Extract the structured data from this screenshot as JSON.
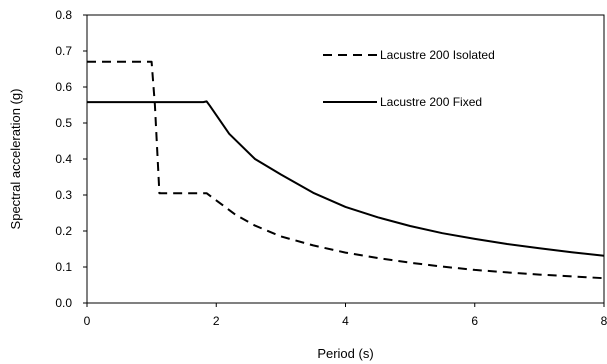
{
  "chart_data": {
    "type": "line",
    "title": "",
    "xlabel": "Period (s)",
    "ylabel": "Spectral acceleration (g)",
    "xlim": [
      0,
      8
    ],
    "ylim": [
      0,
      0.8
    ],
    "x_ticks": [
      0,
      2,
      4,
      6,
      8
    ],
    "y_ticks": [
      0.0,
      0.1,
      0.2,
      0.3,
      0.4,
      0.5,
      0.6,
      0.7,
      0.8
    ],
    "x_tick_labels": [
      "0",
      "2",
      "4",
      "6",
      "8"
    ],
    "y_tick_labels": [
      "0.0",
      "0.1",
      "0.2",
      "0.3",
      "0.4",
      "0.5",
      "0.6",
      "0.7",
      "0.8"
    ],
    "grid": false,
    "legend_position": "top-right",
    "series": [
      {
        "name": "Lacustre 200 Isolated",
        "style": "dashed",
        "color": "#000000",
        "points": [
          [
            0.0,
            0.67
          ],
          [
            1.0,
            0.67
          ],
          [
            1.05,
            0.55
          ],
          [
            1.12,
            0.305
          ],
          [
            1.85,
            0.305
          ],
          [
            2.0,
            0.285
          ],
          [
            2.3,
            0.245
          ],
          [
            2.6,
            0.215
          ],
          [
            3.0,
            0.185
          ],
          [
            3.5,
            0.16
          ],
          [
            4.0,
            0.14
          ],
          [
            4.5,
            0.125
          ],
          [
            5.0,
            0.112
          ],
          [
            5.5,
            0.101
          ],
          [
            6.0,
            0.092
          ],
          [
            6.5,
            0.085
          ],
          [
            7.0,
            0.079
          ],
          [
            7.5,
            0.074
          ],
          [
            8.0,
            0.069
          ]
        ]
      },
      {
        "name": "Lacustre 200 Fixed",
        "style": "solid",
        "color": "#000000",
        "points": [
          [
            0.0,
            0.558
          ],
          [
            1.8,
            0.558
          ],
          [
            1.85,
            0.56
          ],
          [
            1.9,
            0.548
          ],
          [
            2.2,
            0.47
          ],
          [
            2.6,
            0.4
          ],
          [
            3.0,
            0.357
          ],
          [
            3.5,
            0.306
          ],
          [
            4.0,
            0.267
          ],
          [
            4.5,
            0.238
          ],
          [
            5.0,
            0.214
          ],
          [
            5.5,
            0.194
          ],
          [
            6.0,
            0.178
          ],
          [
            6.5,
            0.164
          ],
          [
            7.0,
            0.152
          ],
          [
            7.5,
            0.141
          ],
          [
            8.0,
            0.131
          ]
        ]
      }
    ]
  }
}
